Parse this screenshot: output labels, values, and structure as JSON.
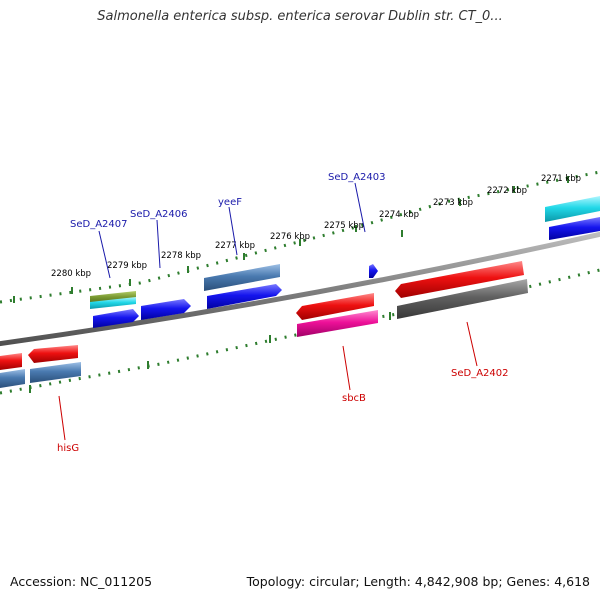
{
  "header": {
    "title": "Salmonella enterica subsp. enterica serovar Dublin str. CT_0..."
  },
  "footer": {
    "accession": "Accession: NC_011205",
    "summary": "Topology: circular; Length: 4,842,908 bp; Genes: 4,618"
  },
  "map": {
    "axis_labels": [
      "2280 kbp",
      "2279 kbp",
      "2278 kbp",
      "2277 kbp",
      "2276 kbp",
      "2275 kbp",
      "2274 kbp",
      "2273 kbp",
      "2272 kbp",
      "2271 kbp"
    ],
    "plus_strand_gene_labels": [
      "SeD_A2407",
      "SeD_A2406",
      "yeeF",
      "SeD_A2403"
    ],
    "minus_strand_gene_labels": [
      "hisG",
      "sbcB",
      "SeD_A2402"
    ],
    "colors": {
      "backbone": "#808080",
      "plus_label": "#1a1aaa",
      "minus_label": "#cc0000",
      "tick": "#2e7d2e",
      "red": "#ee1111",
      "blue": "#1515ee",
      "steel": "#4a7ab0",
      "cyan": "#22d8e8",
      "olive": "#7a9a33",
      "magenta": "#ee1199",
      "gray": "#606060"
    }
  }
}
